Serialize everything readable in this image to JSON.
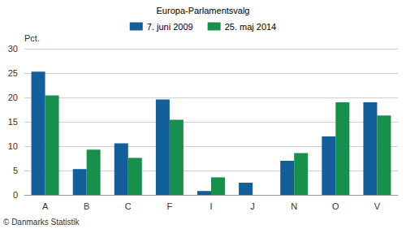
{
  "chart_data": {
    "type": "bar",
    "title": "Europa-Parlamentsvalg",
    "ylabel": "Pct.",
    "categories": [
      "A",
      "B",
      "C",
      "F",
      "I",
      "J",
      "N",
      "O",
      "V"
    ],
    "series": [
      {
        "name": "7. juni 2009",
        "color": "#135f99",
        "values": [
          25.3,
          5.3,
          10.6,
          19.6,
          0.8,
          2.5,
          7.0,
          12.0,
          19.0
        ]
      },
      {
        "name": "25. maj 2014",
        "color": "#17904d",
        "values": [
          20.4,
          9.3,
          7.6,
          15.4,
          3.6,
          null,
          8.6,
          19.0,
          16.3
        ]
      }
    ],
    "ylim": [
      0,
      30
    ],
    "yticks": [
      0,
      5,
      10,
      15,
      20,
      25,
      30
    ],
    "grid": true,
    "legend": "top",
    "annotations": [
      "© Danmarks Statistik"
    ]
  }
}
